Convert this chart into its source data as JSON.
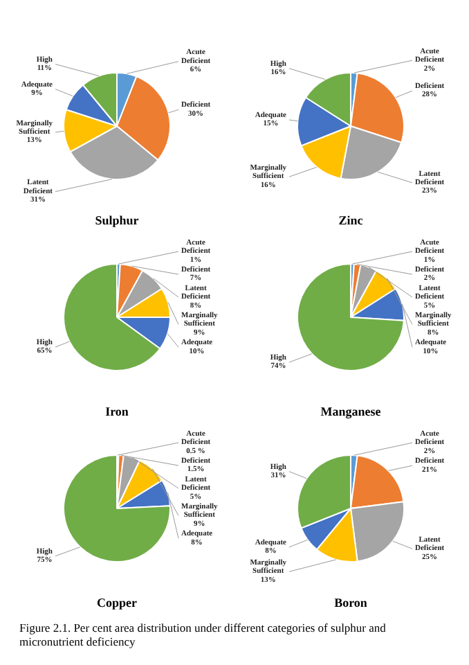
{
  "chart_data": [
    {
      "type": "pie",
      "title": "Sulphur",
      "categories": [
        "Acute Deficient",
        "Deficient",
        "Latent Deficient",
        "Marginally Sufficient",
        "Adequate",
        "High"
      ],
      "values": [
        6,
        30,
        31,
        13,
        9,
        11
      ],
      "value_labels": [
        "6%",
        "30%",
        "31%",
        "13%",
        "9%",
        "11%"
      ],
      "colors": [
        "#5b9bd5",
        "#ed7d31",
        "#a5a5a5",
        "#ffc000",
        "#4472c4",
        "#70ad47"
      ]
    },
    {
      "type": "pie",
      "title": "Zinc",
      "categories": [
        "Acute Deficient",
        "Deficient",
        "Latent Deficient",
        "Marginally Sufficient",
        "Adequate",
        "High"
      ],
      "values": [
        2,
        28,
        23,
        16,
        15,
        16
      ],
      "value_labels": [
        "2%",
        "28%",
        "23%",
        "16%",
        "15%",
        "16%"
      ],
      "colors": [
        "#5b9bd5",
        "#ed7d31",
        "#a5a5a5",
        "#ffc000",
        "#4472c4",
        "#70ad47"
      ]
    },
    {
      "type": "pie",
      "title": "Iron",
      "categories": [
        "Acute Deficient",
        "Deficient",
        "Latent Deficient",
        "Marginally Sufficient",
        "Adequate",
        "High"
      ],
      "values": [
        1,
        7,
        8,
        9,
        10,
        65
      ],
      "value_labels": [
        "1%",
        "7%",
        "8%",
        "9%",
        "10%",
        "65%"
      ],
      "colors": [
        "#5b9bd5",
        "#ed7d31",
        "#a5a5a5",
        "#ffc000",
        "#4472c4",
        "#70ad47"
      ]
    },
    {
      "type": "pie",
      "title": "Manganese",
      "categories": [
        "Acute Deficient",
        "Deficient",
        "Latent Deficient",
        "Marginally Sufficient",
        "Adequate",
        "High"
      ],
      "values": [
        1,
        2,
        5,
        8,
        10,
        74
      ],
      "value_labels": [
        "1%",
        "2%",
        "5%",
        "8%",
        "10%",
        "74%"
      ],
      "colors": [
        "#5b9bd5",
        "#ed7d31",
        "#a5a5a5",
        "#ffc000",
        "#4472c4",
        "#70ad47"
      ]
    },
    {
      "type": "pie",
      "title": "Copper",
      "categories": [
        "Acute Deficient",
        "Deficient",
        "Latent Deficient",
        "Marginally Sufficient",
        "Adequate",
        "High"
      ],
      "values": [
        0.5,
        1.5,
        5,
        9,
        8,
        75
      ],
      "value_labels": [
        "0.5 %",
        "1.5%",
        "5%",
        "9%",
        "8%",
        "75%"
      ],
      "colors": [
        "#5b9bd5",
        "#ed7d31",
        "#a5a5a5",
        "#ffc000",
        "#4472c4",
        "#70ad47"
      ]
    },
    {
      "type": "pie",
      "title": "Boron",
      "categories": [
        "Acute Deficient",
        "Deficient",
        "Latent Deficient",
        "Marginally Sufficient",
        "Adequate",
        "High"
      ],
      "values": [
        2,
        21,
        25,
        13,
        8,
        31
      ],
      "value_labels": [
        "2%",
        "21%",
        "25%",
        "13%",
        "8%",
        "31%"
      ],
      "colors": [
        "#5b9bd5",
        "#ed7d31",
        "#a5a5a5",
        "#ffc000",
        "#4472c4",
        "#70ad47"
      ],
      "annotations": [
        "Figure 2.1. Per cent area distribution under different categories of sulphur and micronutrient deficiency"
      ]
    }
  ]
}
